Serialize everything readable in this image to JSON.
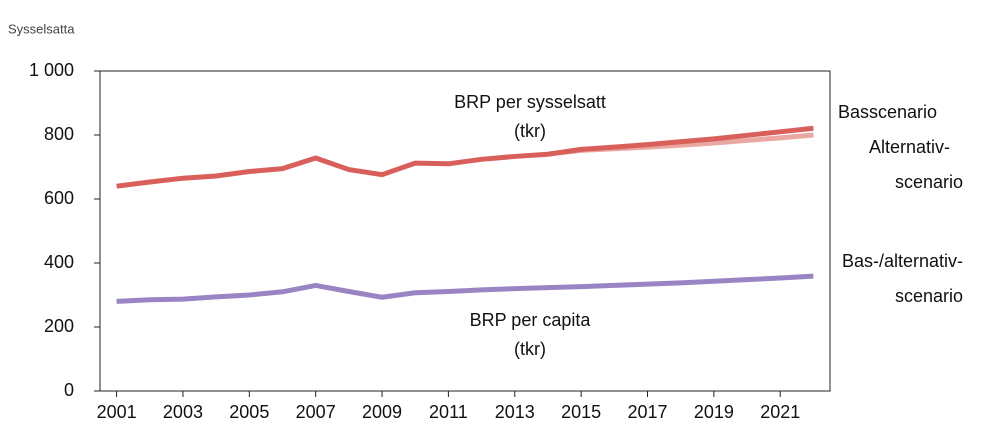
{
  "chart_data": {
    "type": "line",
    "y_title": "Sysselsatta",
    "x": [
      2001,
      2002,
      2003,
      2004,
      2005,
      2006,
      2007,
      2008,
      2009,
      2010,
      2011,
      2012,
      2013,
      2014,
      2015,
      2016,
      2017,
      2018,
      2019,
      2020,
      2021,
      2022
    ],
    "xlim": [
      2000.5,
      2022.5
    ],
    "xticks": [
      2001,
      2003,
      2005,
      2007,
      2009,
      2011,
      2013,
      2015,
      2017,
      2019,
      2021
    ],
    "ylim": [
      0,
      1000
    ],
    "yticks": [
      0,
      200,
      400,
      600,
      800,
      {
        "value": 1000,
        "label": "1 000"
      }
    ],
    "series": [
      {
        "name": [
          "Alternativ-",
          "scenario"
        ],
        "color": "#eba7a2",
        "values": [
          null,
          null,
          null,
          null,
          null,
          null,
          null,
          null,
          null,
          null,
          null,
          null,
          null,
          740,
          752,
          757,
          762,
          768,
          775,
          783,
          791,
          800
        ]
      },
      {
        "name": [
          "Basscenario"
        ],
        "color": "#d9605a",
        "values": [
          640,
          653,
          665,
          672,
          686,
          695,
          728,
          692,
          676,
          712,
          710,
          724,
          733,
          740,
          755,
          762,
          770,
          779,
          788,
          799,
          810,
          821
        ]
      },
      {
        "name": [
          "Bas-/alternativ-",
          "scenario"
        ],
        "color": "#9a85c4",
        "values": [
          280,
          285,
          287,
          294,
          300,
          310,
          330,
          311,
          293,
          307,
          311,
          316,
          320,
          323,
          326,
          330,
          334,
          338,
          343,
          348,
          353,
          359
        ]
      }
    ],
    "annotations": [
      [
        "BRP per sysselsatt",
        "(tkr)"
      ],
      [
        "BRP per capita",
        "(tkr)"
      ]
    ]
  }
}
